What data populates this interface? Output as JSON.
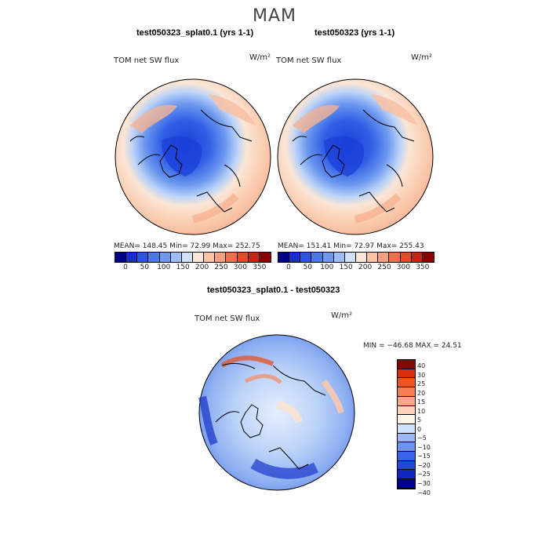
{
  "season": "MAM",
  "panels": [
    {
      "title": "test050323_splat0.1 (yrs 1-1)",
      "variable": "TOM net SW flux",
      "unit": "W/m²",
      "stats": "MEAN= 148.45   Min=   72.99   Max= 252.75"
    },
    {
      "title": "test050323 (yrs 1-1)",
      "variable": "TOM net SW flux",
      "unit": "W/m²",
      "stats": "MEAN= 151.41   Min=   72.97   Max= 255.43"
    }
  ],
  "diff_panel": {
    "title": "test050323_splat0.1 - test050323",
    "variable": "TOM net SW flux",
    "unit": "W/m²",
    "stats": "MIN = −46.68 MAX =  24.51"
  },
  "abs_colorbar": {
    "colors": [
      "#00008a",
      "#1a2ccc",
      "#2f55e0",
      "#4a78ea",
      "#6f98ee",
      "#9cbdf5",
      "#cfe0fb",
      "#fde6d7",
      "#fbc4a8",
      "#f79f7e",
      "#ef6f4c",
      "#e24a28",
      "#c42410",
      "#8a0000"
    ],
    "tick_labels": [
      "0",
      "50",
      "100",
      "150",
      "200",
      "250",
      "300",
      "350"
    ]
  },
  "diff_colorbar": {
    "colors": [
      "#00008a",
      "#1226c4",
      "#2446de",
      "#3a63ea",
      "#6e92f0",
      "#9db8f5",
      "#d0e2fb",
      "#fff4ea",
      "#fcd2b8",
      "#f9a783",
      "#f57e55",
      "#ee5528",
      "#d92e0e",
      "#8a0000"
    ],
    "tick_labels": [
      "40",
      "30",
      "25",
      "20",
      "15",
      "10",
      "5",
      "0",
      "−5",
      "−10",
      "−15",
      "−20",
      "−25",
      "−30",
      "−40"
    ]
  }
}
